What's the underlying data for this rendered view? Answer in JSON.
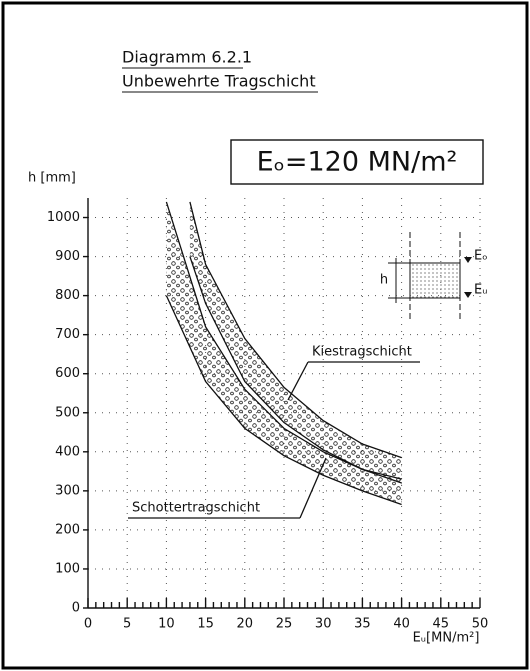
{
  "chart_data": {
    "type": "band",
    "title": "Diagramm 6.2.1",
    "subtitle": "Unbewehrte Tragschicht",
    "box_label": "Eₒ=120 MN/m²",
    "y_label": "h [mm]",
    "x_label": "Eᵤ[MN/m²]",
    "xlim": [
      0,
      50
    ],
    "xticks": [
      0,
      5,
      10,
      15,
      20,
      25,
      30,
      35,
      40,
      45,
      50
    ],
    "ylim": [
      0,
      1050
    ],
    "yticks": [
      0,
      100,
      200,
      300,
      400,
      500,
      600,
      700,
      800,
      900,
      1000
    ],
    "grid": true,
    "bands": [
      {
        "name": "Kiestragschicht",
        "x": [
          13,
          15,
          20,
          25,
          30,
          35,
          40
        ],
        "lower": [
          900,
          780,
          580,
          475,
          405,
          355,
          320
        ],
        "upper": [
          1040,
          880,
          690,
          565,
          480,
          420,
          385
        ]
      },
      {
        "name": "Schottertragschicht",
        "x": [
          10,
          15,
          20,
          25,
          30,
          35,
          40
        ],
        "lower": [
          800,
          580,
          460,
          390,
          340,
          300,
          265
        ],
        "upper": [
          1040,
          720,
          560,
          460,
          400,
          355,
          330
        ]
      }
    ],
    "inset": {
      "height_label": "h",
      "top_label": "Eₒ",
      "bottom_label": "Eᵤ"
    }
  }
}
